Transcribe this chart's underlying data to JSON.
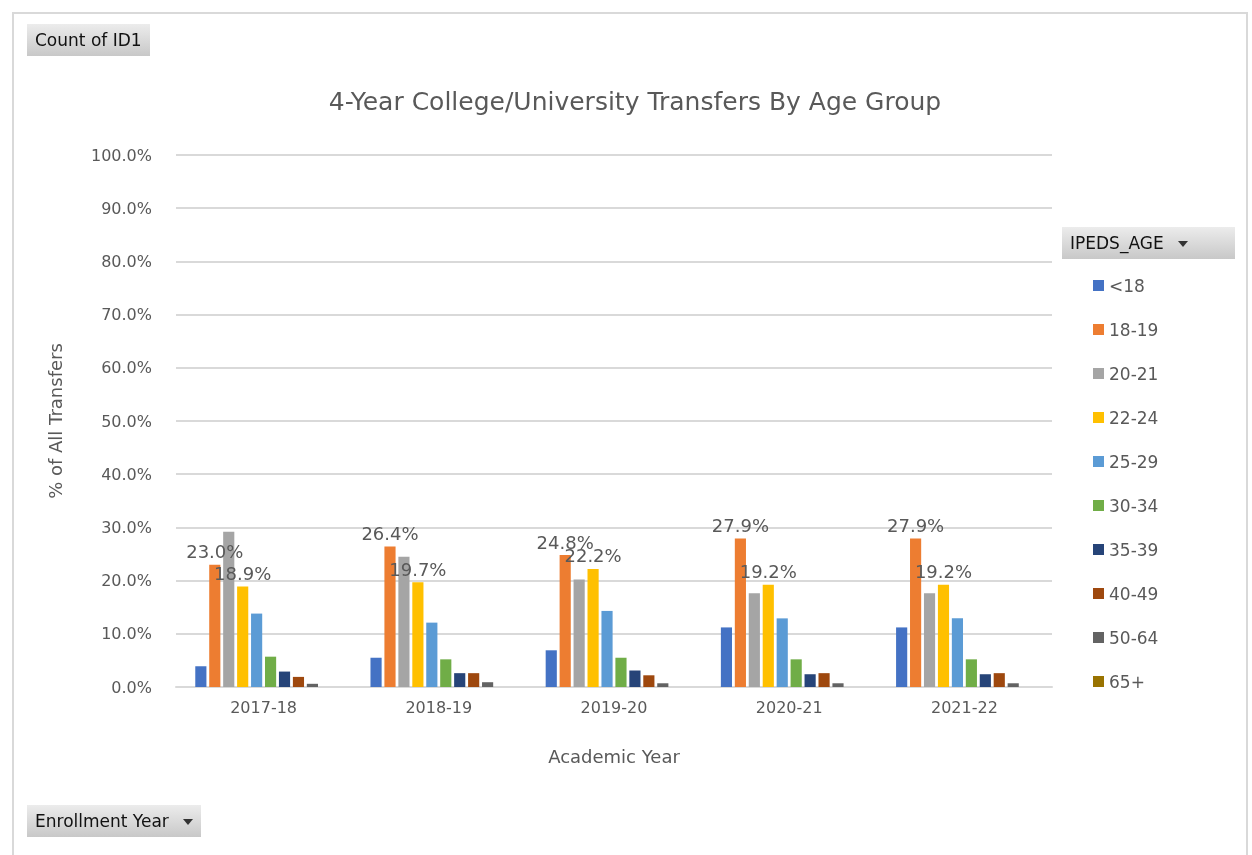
{
  "chart_data": {
    "type": "bar",
    "title": "4-Year College/University Transfers By Age Group",
    "xlabel": "Academic Year",
    "ylabel": "% of All Transfers",
    "legend_title": "IPEDS_AGE",
    "annotations": [
      "Count of ID1",
      "Enrollment Year"
    ],
    "categories": [
      "2017-18",
      "2018-19",
      "2019-20",
      "2020-21",
      "2021-22"
    ],
    "series": [
      {
        "name": "<18",
        "color": "#4472c4",
        "values": [
          3.9,
          5.5,
          6.9,
          11.2,
          11.2
        ]
      },
      {
        "name": "18-19",
        "color": "#ed7d31",
        "values": [
          23.0,
          26.4,
          24.8,
          27.9,
          27.9
        ],
        "value_labels": [
          "23.0%",
          "26.4%",
          "24.8%",
          "27.9%",
          "27.9%"
        ]
      },
      {
        "name": "20-21",
        "color": "#a5a5a5",
        "values": [
          29.2,
          24.5,
          20.2,
          17.6,
          17.6
        ]
      },
      {
        "name": "22-24",
        "color": "#ffc000",
        "values": [
          18.9,
          19.7,
          22.2,
          19.2,
          19.2
        ],
        "value_labels": [
          "18.9%",
          "19.7%",
          "22.2%",
          "19.2%",
          "19.2%"
        ]
      },
      {
        "name": "25-29",
        "color": "#5b9bd5",
        "values": [
          13.8,
          12.1,
          14.3,
          12.9,
          12.9
        ]
      },
      {
        "name": "30-34",
        "color": "#70ad47",
        "values": [
          5.7,
          5.2,
          5.5,
          5.2,
          5.2
        ]
      },
      {
        "name": "35-39",
        "color": "#264478",
        "values": [
          2.9,
          2.6,
          3.1,
          2.4,
          2.4
        ]
      },
      {
        "name": "40-49",
        "color": "#9e480e",
        "values": [
          1.9,
          2.6,
          2.2,
          2.6,
          2.6
        ]
      },
      {
        "name": "50-64",
        "color": "#636363",
        "values": [
          0.6,
          0.9,
          0.7,
          0.7,
          0.7
        ]
      },
      {
        "name": "65+",
        "color": "#997300",
        "values": [
          0,
          0,
          0,
          0,
          0
        ]
      }
    ],
    "ylim": [
      0,
      100
    ],
    "yticks": [
      {
        "value": 0,
        "label": "0.0%"
      },
      {
        "value": 10,
        "label": "10.0%"
      },
      {
        "value": 20,
        "label": "20.0%"
      },
      {
        "value": 30,
        "label": "30.0%"
      },
      {
        "value": 40,
        "label": "40.0%"
      },
      {
        "value": 50,
        "label": "50.0%"
      },
      {
        "value": 60,
        "label": "60.0%"
      },
      {
        "value": 70,
        "label": "70.0%"
      },
      {
        "value": 80,
        "label": "80.0%"
      },
      {
        "value": 90,
        "label": "90.0%"
      },
      {
        "value": 100,
        "label": "100.0%"
      }
    ],
    "grid": "y",
    "legend": "right"
  }
}
